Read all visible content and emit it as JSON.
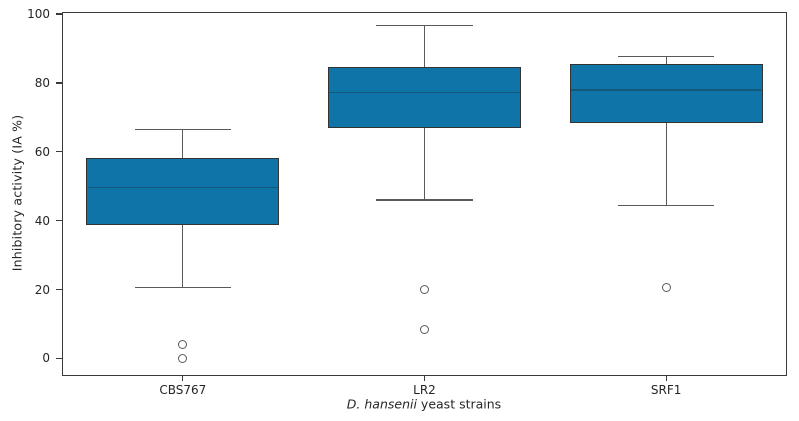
{
  "chart_data": {
    "type": "box",
    "title": "",
    "ylabel": "Inhibitory activity (IA %)",
    "xlabel_italic": "D. hansenii",
    "xlabel_rest": " yeast strains",
    "categories": [
      "CBS767",
      "LR2",
      "SRF1"
    ],
    "y_ticks": [
      0,
      20,
      40,
      60,
      80,
      100
    ],
    "ylim": [
      -5.1,
      100.6
    ],
    "grid": false,
    "legend": "none",
    "series": [
      {
        "category": "CBS767",
        "whisker_low": 20.5,
        "q1": 38.7,
        "median": 49.7,
        "q3": 58.2,
        "whisker_high": 66.4,
        "outliers": [
          4.0,
          0.0
        ]
      },
      {
        "category": "LR2",
        "whisker_low": 46.0,
        "q1": 66.8,
        "median": 77.2,
        "q3": 84.5,
        "whisker_high": 96.6,
        "outliers": [
          20.0,
          8.3
        ]
      },
      {
        "category": "SRF1",
        "whisker_low": 44.5,
        "q1": 68.3,
        "median": 78.0,
        "q3": 85.4,
        "whisker_high": 87.6,
        "outliers": [
          20.5
        ]
      }
    ],
    "colors": {
      "box_fill": "#0f74a8",
      "box_edge": "#333333",
      "median_line": "#14597a",
      "whisker": "#595959",
      "outlier_edge": "#595959",
      "spine": "#3a3a3a",
      "text": "#262626"
    }
  }
}
